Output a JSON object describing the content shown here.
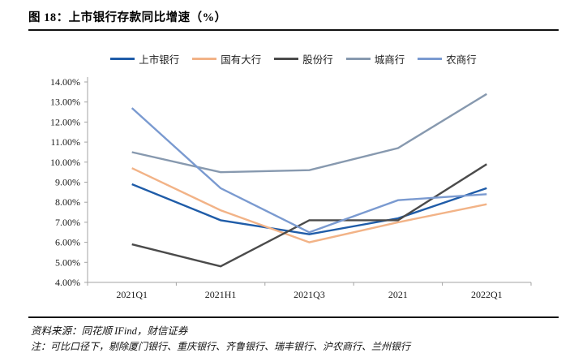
{
  "figure": {
    "title": "图 18：上市银行存款同比增速（%）"
  },
  "footer": {
    "source": "资料来源：同花顺 IFind，财信证券",
    "note": "注：可比口径下，剔除厦门银行、重庆银行、齐鲁银行、瑞丰银行、沪农商行、兰州银行"
  },
  "chart_data": {
    "type": "line",
    "title": "上市银行存款同比增速（%）",
    "categories": [
      "2021Q1",
      "2021H1",
      "2021Q3",
      "2021",
      "2022Q1"
    ],
    "series": [
      {
        "name": "上市银行",
        "color": "#1F5CA8",
        "values": [
          8.9,
          7.1,
          6.4,
          7.2,
          8.7
        ]
      },
      {
        "name": "国有大行",
        "color": "#F2B387",
        "values": [
          9.7,
          7.6,
          6.0,
          7.0,
          7.9
        ]
      },
      {
        "name": "股份行",
        "color": "#4B4B4B",
        "values": [
          5.9,
          4.8,
          7.1,
          7.1,
          9.9
        ]
      },
      {
        "name": "城商行",
        "color": "#8799AF",
        "values": [
          10.5,
          9.5,
          9.6,
          10.7,
          13.4
        ]
      },
      {
        "name": "农商行",
        "color": "#7A9AD0",
        "values": [
          12.7,
          8.7,
          6.5,
          8.1,
          8.4
        ]
      }
    ],
    "ylim": [
      4,
      14
    ],
    "y_tick_step": 1,
    "y_tick_labels": [
      "14.00%",
      "13.00%",
      "12.00%",
      "11.00%",
      "10.00%",
      "9.00%",
      "8.00%",
      "7.00%",
      "6.00%",
      "5.00%",
      "4.00%"
    ],
    "xlabel": "",
    "ylabel": "",
    "grid": false,
    "legend_position": "top",
    "axis_color": "#A3A3A3",
    "tick_label_color": "#1a1a1a"
  }
}
